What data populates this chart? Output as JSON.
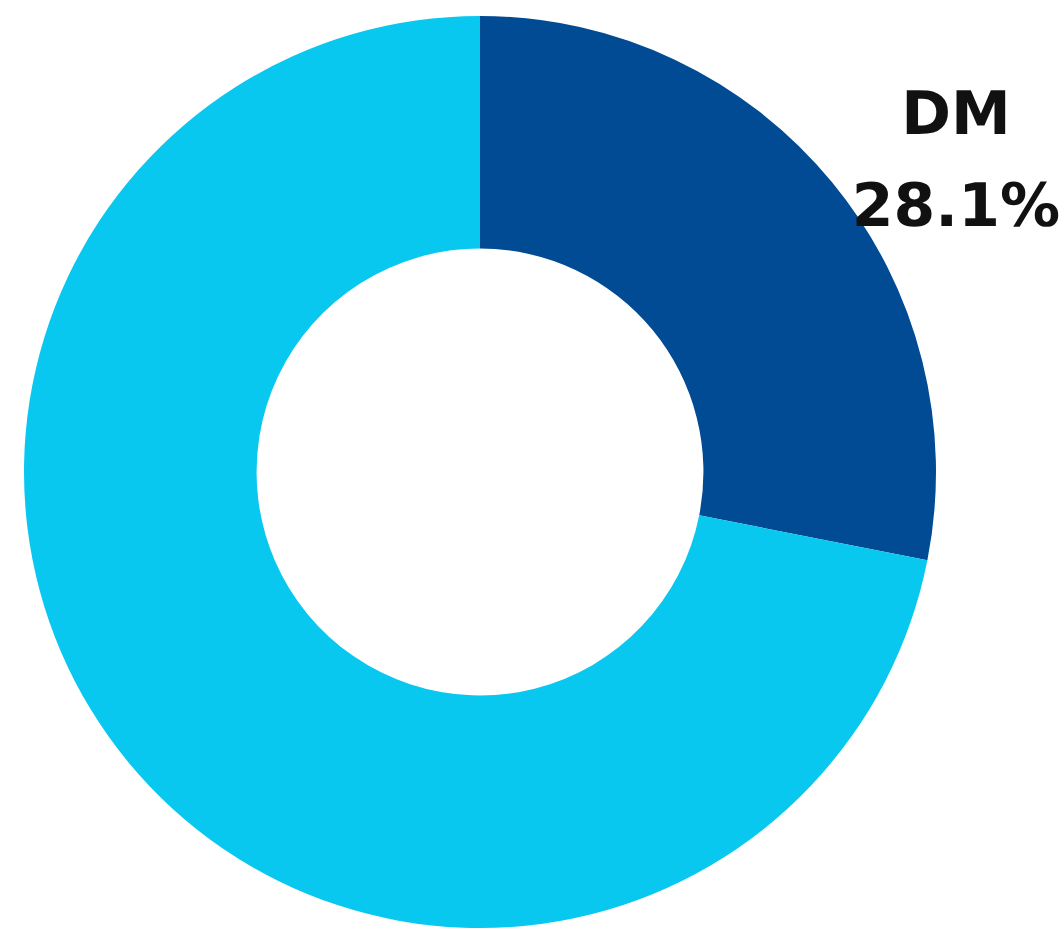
{
  "chart_data": {
    "type": "donut",
    "categories": [
      "DM",
      null
    ],
    "values": [
      28.1,
      71.9
    ],
    "colors": [
      "#004b93",
      "#08c8f0"
    ],
    "value_labels": [
      "28.1%",
      null
    ],
    "legend": false
  }
}
